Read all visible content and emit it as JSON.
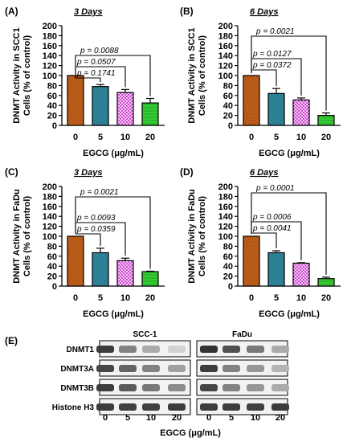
{
  "chart_data": [
    {
      "panel": "(A)",
      "title": "3 Days",
      "type": "bar",
      "categories": [
        "0",
        "5",
        "10",
        "20"
      ],
      "values": [
        100,
        78,
        66,
        45
      ],
      "errors": [
        0,
        4,
        6,
        9
      ],
      "ylabel": "DNMT Activity in SCC1 Cells (% of control)",
      "xlabel": "EGCG (μg/mL)",
      "ylim": [
        0,
        200
      ],
      "yticks": [
        0,
        20,
        40,
        60,
        80,
        100,
        120,
        140,
        160,
        180,
        200
      ],
      "comparisons": [
        {
          "label": "p = 0.1741",
          "from": 0,
          "to": 1
        },
        {
          "label": "p = 0.0507",
          "from": 0,
          "to": 2
        },
        {
          "label": "p = 0.0088",
          "from": 0,
          "to": 3
        }
      ]
    },
    {
      "panel": "(B)",
      "title": "6 Days",
      "type": "bar",
      "categories": [
        "0",
        "5",
        "10",
        "20"
      ],
      "values": [
        100,
        64,
        51,
        20
      ],
      "errors": [
        0,
        10,
        4,
        5
      ],
      "ylabel": "DNMT Activity in SCC1 Cells (% of control)",
      "xlabel": "EGCG (μg/mL)",
      "ylim": [
        0,
        200
      ],
      "yticks": [
        0,
        20,
        40,
        60,
        80,
        100,
        120,
        140,
        160,
        180,
        200
      ],
      "comparisons": [
        {
          "label": "p = 0.0372",
          "from": 0,
          "to": 1
        },
        {
          "label": "p = 0.0127",
          "from": 0,
          "to": 2
        },
        {
          "label": "p = 0.0021",
          "from": 0,
          "to": 3
        }
      ]
    },
    {
      "panel": "(C)",
      "title": "3 Days",
      "type": "bar",
      "categories": [
        "0",
        "5",
        "10",
        "20"
      ],
      "values": [
        100,
        67,
        51,
        29
      ],
      "errors": [
        0,
        9,
        5,
        1
      ],
      "ylabel": "DNMT Activity in FaDu Cells (% of control)",
      "xlabel": "EGCG (μg/mL)",
      "ylim": [
        0,
        200
      ],
      "yticks": [
        0,
        20,
        40,
        60,
        80,
        100,
        120,
        140,
        160,
        180,
        200
      ],
      "comparisons": [
        {
          "label": "p = 0.0359",
          "from": 0,
          "to": 1
        },
        {
          "label": "p = 0.0093",
          "from": 0,
          "to": 2
        },
        {
          "label": "p = 0.0021",
          "from": 0,
          "to": 3
        }
      ]
    },
    {
      "panel": "(D)",
      "title": "6 Days",
      "type": "bar",
      "categories": [
        "0",
        "5",
        "10",
        "20"
      ],
      "values": [
        100,
        67,
        46,
        15
      ],
      "errors": [
        0,
        4,
        1,
        3
      ],
      "ylabel": "DNMT Activity in FaDu Cells (% of control)",
      "xlabel": "EGCG (μg/mL)",
      "ylim": [
        0,
        200
      ],
      "yticks": [
        0,
        20,
        40,
        60,
        80,
        100,
        120,
        140,
        160,
        180,
        200
      ],
      "comparisons": [
        {
          "label": "p = 0.0041",
          "from": 0,
          "to": 1
        },
        {
          "label": "p = 0.0006",
          "from": 0,
          "to": 2
        },
        {
          "label": "p = 0.0001",
          "from": 0,
          "to": 3
        }
      ]
    }
  ],
  "bar_colors": [
    "#d2691e",
    "#2f8aa0",
    "#cc33cc",
    "#33cc33"
  ],
  "blot": {
    "panel": "(E)",
    "groups": [
      "SCC-1",
      "FaDu"
    ],
    "rows": [
      "DNMT1",
      "DNMT3A",
      "DNMT3B",
      "Histone H3"
    ],
    "lanes": [
      "0",
      "5",
      "10",
      "20",
      "0",
      "5",
      "10",
      "20"
    ],
    "xlabel": "EGCG (μg/mL)",
    "intensity": [
      [
        0.9,
        0.55,
        0.35,
        0.15,
        0.95,
        0.8,
        0.6,
        0.35
      ],
      [
        0.85,
        0.7,
        0.55,
        0.4,
        0.9,
        0.55,
        0.45,
        0.3
      ],
      [
        0.9,
        0.75,
        0.6,
        0.5,
        0.85,
        0.55,
        0.45,
        0.35
      ],
      [
        0.9,
        0.88,
        0.88,
        0.9,
        0.9,
        0.9,
        0.88,
        0.9
      ]
    ]
  }
}
